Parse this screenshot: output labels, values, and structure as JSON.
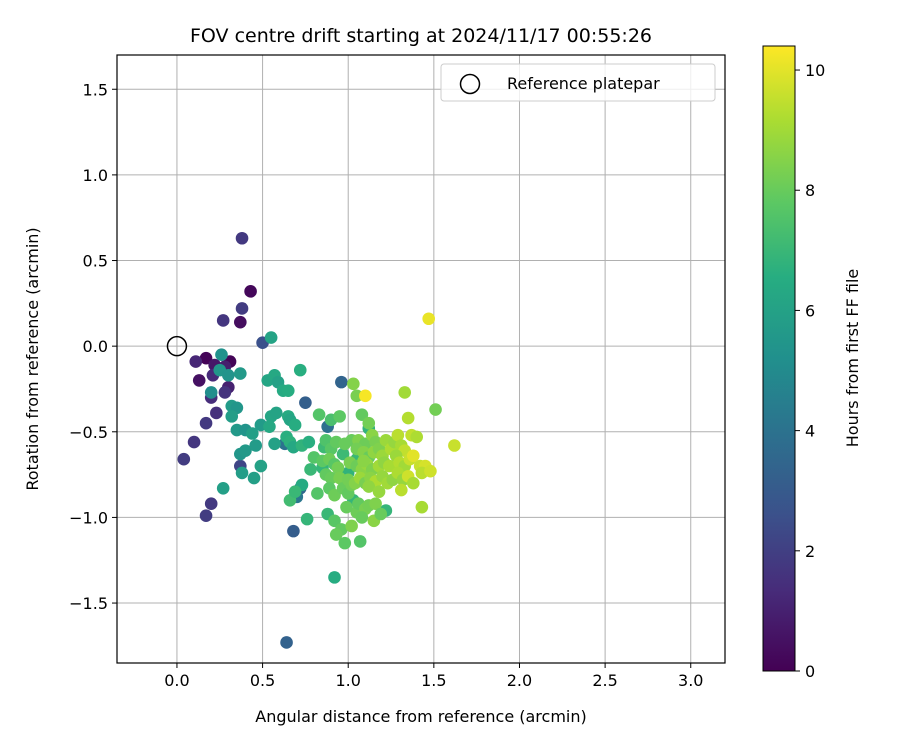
{
  "chart_data": {
    "type": "scatter",
    "title": "FOV centre drift starting at 2024/11/17 00:55:26",
    "xlabel": "Angular distance from reference (arcmin)",
    "ylabel": "Rotation from reference (arcmin)",
    "xlim": [
      -0.35,
      3.2
    ],
    "ylim": [
      -1.85,
      1.7
    ],
    "xticks": [
      0.0,
      0.5,
      1.0,
      1.5,
      2.0,
      2.5,
      3.0
    ],
    "xtick_labels": [
      "0.0",
      "0.5",
      "1.0",
      "1.5",
      "2.0",
      "2.5",
      "3.0"
    ],
    "yticks": [
      -1.5,
      -1.0,
      -0.5,
      0.0,
      0.5,
      1.0,
      1.5
    ],
    "ytick_labels": [
      "−1.5",
      "−1.0",
      "−0.5",
      "0.0",
      "0.5",
      "1.0",
      "1.5"
    ],
    "grid": true,
    "legend": {
      "placement": "top-right",
      "entries": [
        {
          "label": "Reference platepar",
          "marker": "hollow-circle",
          "x": 0.0,
          "y": 0.0
        }
      ]
    },
    "colorbar": {
      "label": "Hours from first FF file",
      "colormap": "viridis",
      "range": [
        0,
        10.4
      ],
      "ticks": [
        0,
        2,
        4,
        6,
        8,
        10
      ],
      "tick_labels": [
        "0",
        "2",
        "4",
        "6",
        "8",
        "10"
      ]
    },
    "points": [
      {
        "x": 0.17,
        "y": -0.07,
        "c": 0.1
      },
      {
        "x": 0.31,
        "y": -0.09,
        "c": 0.1
      },
      {
        "x": 0.43,
        "y": 0.32,
        "c": 0.2
      },
      {
        "x": 0.37,
        "y": 0.14,
        "c": 0.4
      },
      {
        "x": 0.13,
        "y": -0.2,
        "c": 0.5
      },
      {
        "x": 0.22,
        "y": -0.11,
        "c": 0.7
      },
      {
        "x": 0.28,
        "y": -0.12,
        "c": 0.9
      },
      {
        "x": 0.3,
        "y": -0.24,
        "c": 1.0
      },
      {
        "x": 0.11,
        "y": -0.09,
        "c": 1.2
      },
      {
        "x": 0.21,
        "y": -0.17,
        "c": 1.3
      },
      {
        "x": 0.2,
        "y": -0.3,
        "c": 1.4
      },
      {
        "x": 0.23,
        "y": -0.39,
        "c": 1.5
      },
      {
        "x": 0.28,
        "y": -0.27,
        "c": 1.6
      },
      {
        "x": 0.27,
        "y": 0.15,
        "c": 1.7
      },
      {
        "x": 0.38,
        "y": 0.63,
        "c": 1.8
      },
      {
        "x": 0.38,
        "y": 0.22,
        "c": 1.9
      },
      {
        "x": 0.17,
        "y": -0.45,
        "c": 1.8
      },
      {
        "x": 0.1,
        "y": -0.56,
        "c": 1.7
      },
      {
        "x": 0.04,
        "y": -0.66,
        "c": 1.9
      },
      {
        "x": 0.2,
        "y": -0.92,
        "c": 1.8
      },
      {
        "x": 0.17,
        "y": -0.99,
        "c": 1.9
      },
      {
        "x": 0.37,
        "y": -0.7,
        "c": 2.2
      },
      {
        "x": 0.5,
        "y": 0.02,
        "c": 2.6
      },
      {
        "x": 0.68,
        "y": -1.08,
        "c": 3.1
      },
      {
        "x": 0.75,
        "y": -0.33,
        "c": 3.2
      },
      {
        "x": 0.96,
        "y": -0.21,
        "c": 3.4
      },
      {
        "x": 0.72,
        "y": -0.83,
        "c": 3.5
      },
      {
        "x": 0.64,
        "y": -1.73,
        "c": 3.3
      },
      {
        "x": 0.63,
        "y": -0.57,
        "c": 4.0
      },
      {
        "x": 0.88,
        "y": -0.47,
        "c": 3.9
      },
      {
        "x": 0.7,
        "y": -0.88,
        "c": 4.2
      },
      {
        "x": 0.2,
        "y": -0.27,
        "c": 5.1
      },
      {
        "x": 0.26,
        "y": -0.05,
        "c": 5.3
      },
      {
        "x": 0.25,
        "y": -0.14,
        "c": 5.5
      },
      {
        "x": 0.3,
        "y": -0.17,
        "c": 5.4
      },
      {
        "x": 0.37,
        "y": -0.16,
        "c": 5.6
      },
      {
        "x": 0.32,
        "y": -0.35,
        "c": 5.7
      },
      {
        "x": 0.35,
        "y": -0.36,
        "c": 5.5
      },
      {
        "x": 0.32,
        "y": -0.41,
        "c": 5.8
      },
      {
        "x": 0.35,
        "y": -0.49,
        "c": 5.6
      },
      {
        "x": 0.4,
        "y": -0.49,
        "c": 5.4
      },
      {
        "x": 0.44,
        "y": -0.51,
        "c": 5.9
      },
      {
        "x": 0.49,
        "y": -0.46,
        "c": 5.7
      },
      {
        "x": 0.37,
        "y": -0.63,
        "c": 5.5
      },
      {
        "x": 0.4,
        "y": -0.61,
        "c": 5.6
      },
      {
        "x": 0.38,
        "y": -0.74,
        "c": 5.8
      },
      {
        "x": 0.45,
        "y": -0.77,
        "c": 5.9
      },
      {
        "x": 0.49,
        "y": -0.7,
        "c": 6.0
      },
      {
        "x": 0.46,
        "y": -0.58,
        "c": 5.7
      },
      {
        "x": 0.55,
        "y": 0.05,
        "c": 6.1
      },
      {
        "x": 0.53,
        "y": -0.2,
        "c": 6.2
      },
      {
        "x": 0.57,
        "y": -0.17,
        "c": 6.3
      },
      {
        "x": 0.59,
        "y": -0.21,
        "c": 6.0
      },
      {
        "x": 0.62,
        "y": -0.26,
        "c": 6.4
      },
      {
        "x": 0.65,
        "y": -0.26,
        "c": 6.5
      },
      {
        "x": 0.72,
        "y": -0.14,
        "c": 6.6
      },
      {
        "x": 0.55,
        "y": -0.41,
        "c": 6.2
      },
      {
        "x": 0.58,
        "y": -0.39,
        "c": 6.1
      },
      {
        "x": 0.54,
        "y": -0.47,
        "c": 6.3
      },
      {
        "x": 0.57,
        "y": -0.57,
        "c": 6.0
      },
      {
        "x": 0.65,
        "y": -0.41,
        "c": 6.4
      },
      {
        "x": 0.66,
        "y": -0.43,
        "c": 6.2
      },
      {
        "x": 0.69,
        "y": -0.46,
        "c": 6.5
      },
      {
        "x": 0.64,
        "y": -0.53,
        "c": 6.6
      },
      {
        "x": 0.66,
        "y": -0.56,
        "c": 6.7
      },
      {
        "x": 0.68,
        "y": -0.59,
        "c": 6.3
      },
      {
        "x": 0.73,
        "y": -0.58,
        "c": 6.8
      },
      {
        "x": 0.77,
        "y": -0.56,
        "c": 6.6
      },
      {
        "x": 0.27,
        "y": -0.83,
        "c": 5.9
      },
      {
        "x": 0.73,
        "y": -0.81,
        "c": 6.4
      },
      {
        "x": 0.76,
        "y": -1.01,
        "c": 6.9
      },
      {
        "x": 0.92,
        "y": -1.35,
        "c": 6.5
      },
      {
        "x": 0.78,
        "y": -0.72,
        "c": 7.0
      },
      {
        "x": 0.86,
        "y": -0.59,
        "c": 7.1
      },
      {
        "x": 0.85,
        "y": -0.71,
        "c": 6.9
      },
      {
        "x": 0.88,
        "y": -0.98,
        "c": 7.0
      },
      {
        "x": 0.66,
        "y": -0.9,
        "c": 7.2
      },
      {
        "x": 0.69,
        "y": -0.85,
        "c": 7.0
      },
      {
        "x": 1.0,
        "y": -0.74,
        "c": 6.8
      },
      {
        "x": 1.05,
        "y": -0.66,
        "c": 7.0
      },
      {
        "x": 1.03,
        "y": -0.9,
        "c": 6.9
      },
      {
        "x": 1.12,
        "y": -0.48,
        "c": 6.8
      },
      {
        "x": 1.22,
        "y": -0.96,
        "c": 6.9
      },
      {
        "x": 0.97,
        "y": -0.63,
        "c": 7.1
      },
      {
        "x": 0.83,
        "y": -0.4,
        "c": 7.6
      },
      {
        "x": 0.9,
        "y": -0.43,
        "c": 7.4
      },
      {
        "x": 0.95,
        "y": -0.41,
        "c": 7.8
      },
      {
        "x": 0.87,
        "y": -0.55,
        "c": 7.5
      },
      {
        "x": 0.9,
        "y": -0.6,
        "c": 7.7
      },
      {
        "x": 0.93,
        "y": -0.56,
        "c": 7.9
      },
      {
        "x": 0.98,
        "y": -0.57,
        "c": 8.0
      },
      {
        "x": 0.8,
        "y": -0.65,
        "c": 7.6
      },
      {
        "x": 0.85,
        "y": -0.67,
        "c": 7.8
      },
      {
        "x": 0.89,
        "y": -0.66,
        "c": 8.1
      },
      {
        "x": 0.92,
        "y": -0.69,
        "c": 7.7
      },
      {
        "x": 0.94,
        "y": -0.71,
        "c": 8.2
      },
      {
        "x": 0.87,
        "y": -0.75,
        "c": 7.9
      },
      {
        "x": 0.9,
        "y": -0.77,
        "c": 8.0
      },
      {
        "x": 0.95,
        "y": -0.77,
        "c": 8.3
      },
      {
        "x": 0.82,
        "y": -0.86,
        "c": 7.6
      },
      {
        "x": 0.89,
        "y": -0.83,
        "c": 7.8
      },
      {
        "x": 0.92,
        "y": -0.87,
        "c": 8.1
      },
      {
        "x": 0.97,
        "y": -0.83,
        "c": 8.0
      },
      {
        "x": 1.0,
        "y": -0.86,
        "c": 7.9
      },
      {
        "x": 1.02,
        "y": -0.81,
        "c": 8.2
      },
      {
        "x": 0.92,
        "y": -1.02,
        "c": 7.7
      },
      {
        "x": 0.96,
        "y": -1.07,
        "c": 7.9
      },
      {
        "x": 0.93,
        "y": -1.1,
        "c": 8.0
      },
      {
        "x": 0.98,
        "y": -1.15,
        "c": 7.8
      },
      {
        "x": 1.07,
        "y": -1.14,
        "c": 7.6
      },
      {
        "x": 1.02,
        "y": -1.05,
        "c": 8.4
      },
      {
        "x": 1.05,
        "y": -0.97,
        "c": 8.1
      },
      {
        "x": 1.06,
        "y": -0.92,
        "c": 7.9
      },
      {
        "x": 1.1,
        "y": -0.95,
        "c": 8.3
      },
      {
        "x": 1.08,
        "y": -1.0,
        "c": 8.0
      },
      {
        "x": 1.12,
        "y": -0.93,
        "c": 8.2
      },
      {
        "x": 1.16,
        "y": -0.92,
        "c": 8.4
      },
      {
        "x": 1.15,
        "y": -1.02,
        "c": 8.6
      },
      {
        "x": 1.19,
        "y": -0.98,
        "c": 8.0
      },
      {
        "x": 1.03,
        "y": -0.22,
        "c": 8.5
      },
      {
        "x": 1.05,
        "y": -0.29,
        "c": 8.3
      },
      {
        "x": 1.08,
        "y": -0.4,
        "c": 7.9
      },
      {
        "x": 1.12,
        "y": -0.45,
        "c": 8.2
      },
      {
        "x": 1.02,
        "y": -0.55,
        "c": 8.0
      },
      {
        "x": 1.06,
        "y": -0.55,
        "c": 8.4
      },
      {
        "x": 1.1,
        "y": -0.57,
        "c": 8.1
      },
      {
        "x": 1.14,
        "y": -0.52,
        "c": 8.6
      },
      {
        "x": 1.16,
        "y": -0.56,
        "c": 8.3
      },
      {
        "x": 1.05,
        "y": -0.6,
        "c": 8.2
      },
      {
        "x": 1.09,
        "y": -0.62,
        "c": 8.5
      },
      {
        "x": 1.12,
        "y": -0.65,
        "c": 8.0
      },
      {
        "x": 1.15,
        "y": -0.62,
        "c": 8.7
      },
      {
        "x": 1.18,
        "y": -0.6,
        "c": 8.4
      },
      {
        "x": 1.2,
        "y": -0.64,
        "c": 8.9
      },
      {
        "x": 1.01,
        "y": -0.68,
        "c": 8.3
      },
      {
        "x": 1.05,
        "y": -0.7,
        "c": 8.1
      },
      {
        "x": 1.08,
        "y": -0.72,
        "c": 8.6
      },
      {
        "x": 1.11,
        "y": -0.69,
        "c": 8.8
      },
      {
        "x": 1.14,
        "y": -0.72,
        "c": 8.4
      },
      {
        "x": 1.18,
        "y": -0.7,
        "c": 9.0
      },
      {
        "x": 1.21,
        "y": -0.68,
        "c": 8.7
      },
      {
        "x": 1.24,
        "y": -0.7,
        "c": 9.1
      },
      {
        "x": 1.0,
        "y": -0.78,
        "c": 8.2
      },
      {
        "x": 1.04,
        "y": -0.8,
        "c": 8.5
      },
      {
        "x": 1.07,
        "y": -0.77,
        "c": 8.9
      },
      {
        "x": 1.1,
        "y": -0.8,
        "c": 8.3
      },
      {
        "x": 1.13,
        "y": -0.77,
        "c": 8.6
      },
      {
        "x": 1.16,
        "y": -0.79,
        "c": 9.2
      },
      {
        "x": 1.2,
        "y": -0.76,
        "c": 8.8
      },
      {
        "x": 1.23,
        "y": -0.8,
        "c": 9.0
      },
      {
        "x": 1.26,
        "y": -0.78,
        "c": 8.7
      },
      {
        "x": 1.22,
        "y": -0.55,
        "c": 8.9
      },
      {
        "x": 1.25,
        "y": -0.6,
        "c": 9.2
      },
      {
        "x": 1.27,
        "y": -0.56,
        "c": 8.8
      },
      {
        "x": 1.29,
        "y": -0.52,
        "c": 9.4
      },
      {
        "x": 1.31,
        "y": -0.58,
        "c": 9.1
      },
      {
        "x": 1.33,
        "y": -0.61,
        "c": 9.5
      },
      {
        "x": 1.28,
        "y": -0.64,
        "c": 8.9
      },
      {
        "x": 1.3,
        "y": -0.68,
        "c": 9.3
      },
      {
        "x": 1.33,
        "y": -0.7,
        "c": 9.0
      },
      {
        "x": 1.36,
        "y": -0.66,
        "c": 9.6
      },
      {
        "x": 1.29,
        "y": -0.74,
        "c": 9.2
      },
      {
        "x": 1.32,
        "y": -0.78,
        "c": 8.8
      },
      {
        "x": 1.35,
        "y": -0.76,
        "c": 9.7
      },
      {
        "x": 1.38,
        "y": -0.8,
        "c": 9.1
      },
      {
        "x": 1.31,
        "y": -0.84,
        "c": 9.4
      },
      {
        "x": 1.33,
        "y": -0.27,
        "c": 9.0
      },
      {
        "x": 1.35,
        "y": -0.42,
        "c": 9.3
      },
      {
        "x": 1.37,
        "y": -0.52,
        "c": 9.5
      },
      {
        "x": 1.4,
        "y": -0.53,
        "c": 9.2
      },
      {
        "x": 1.38,
        "y": -0.64,
        "c": 10.0
      },
      {
        "x": 1.42,
        "y": -0.7,
        "c": 9.6
      },
      {
        "x": 1.45,
        "y": -0.7,
        "c": 9.8
      },
      {
        "x": 1.43,
        "y": -0.74,
        "c": 9.4
      },
      {
        "x": 1.48,
        "y": -0.73,
        "c": 9.7
      },
      {
        "x": 1.43,
        "y": -0.94,
        "c": 9.1
      },
      {
        "x": 1.51,
        "y": -0.37,
        "c": 8.2
      },
      {
        "x": 1.62,
        "y": -0.58,
        "c": 9.6
      },
      {
        "x": 1.47,
        "y": 0.16,
        "c": 10.1
      },
      {
        "x": 1.1,
        "y": -0.29,
        "c": 10.3
      },
      {
        "x": 1.09,
        "y": -0.67,
        "c": 8.6
      },
      {
        "x": 1.12,
        "y": -0.82,
        "c": 8.7
      },
      {
        "x": 0.99,
        "y": -0.94,
        "c": 8.0
      },
      {
        "x": 1.18,
        "y": -0.85,
        "c": 8.8
      }
    ]
  }
}
